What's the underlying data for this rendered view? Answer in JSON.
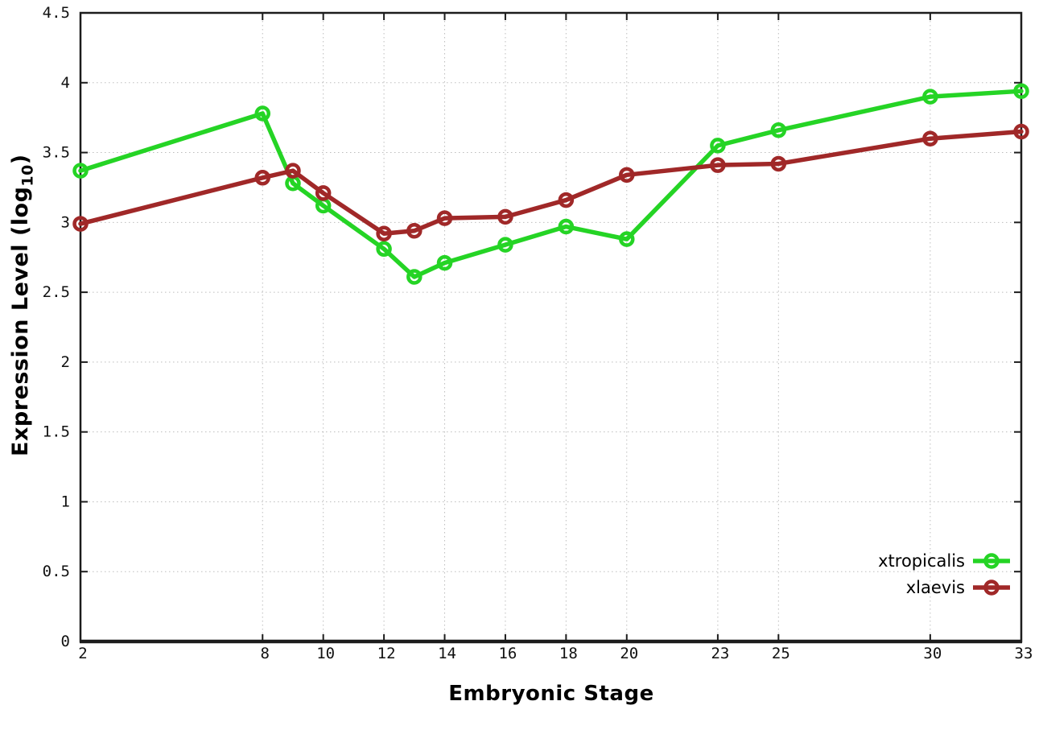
{
  "chart_data": {
    "type": "line",
    "title": "",
    "xlabel": "Embryonic Stage",
    "ylabel": "Expression Level (log10)",
    "ylabel_parts": {
      "prefix": "Expression Level (log",
      "sub": "10",
      "suffix": ")"
    },
    "x": [
      2,
      8,
      9,
      10,
      12,
      13,
      14,
      16,
      18,
      20,
      23,
      25,
      30,
      33
    ],
    "series": [
      {
        "name": "xtropicalis",
        "color": "#25d425",
        "values": [
          3.37,
          3.78,
          3.28,
          3.12,
          2.81,
          2.61,
          2.71,
          2.84,
          2.97,
          2.88,
          3.55,
          3.66,
          3.9,
          3.94
        ]
      },
      {
        "name": "xlaevis",
        "color": "#a02828",
        "values": [
          2.99,
          3.32,
          3.37,
          3.21,
          2.92,
          2.94,
          3.03,
          3.04,
          3.16,
          3.34,
          3.41,
          3.42,
          3.6,
          3.65
        ]
      }
    ],
    "xlim": [
      2,
      33
    ],
    "ylim": [
      0,
      4.5
    ],
    "xticks": [
      2,
      8,
      10,
      12,
      14,
      16,
      18,
      20,
      23,
      25,
      30,
      33
    ],
    "xtick_labels": [
      "2",
      "8",
      "10",
      "12",
      "14",
      "16",
      "18",
      "20",
      "23",
      "25",
      "30",
      "33"
    ],
    "yticks": [
      0,
      0.5,
      1,
      1.5,
      2,
      2.5,
      3,
      3.5,
      4,
      4.5
    ],
    "ytick_labels": [
      "0",
      "0.5",
      "1",
      "1.5",
      "2",
      "2.5",
      "3",
      "3.5",
      "4",
      "4.5"
    ],
    "grid": true,
    "grid_style": "dotted",
    "grid_color": "#bdbdbd",
    "border_color": "#1c1c1c",
    "text_color": "#111111",
    "marker": "open-circle",
    "legend_position": "bottom-right",
    "legend": [
      "xtropicalis",
      "xlaevis"
    ]
  }
}
